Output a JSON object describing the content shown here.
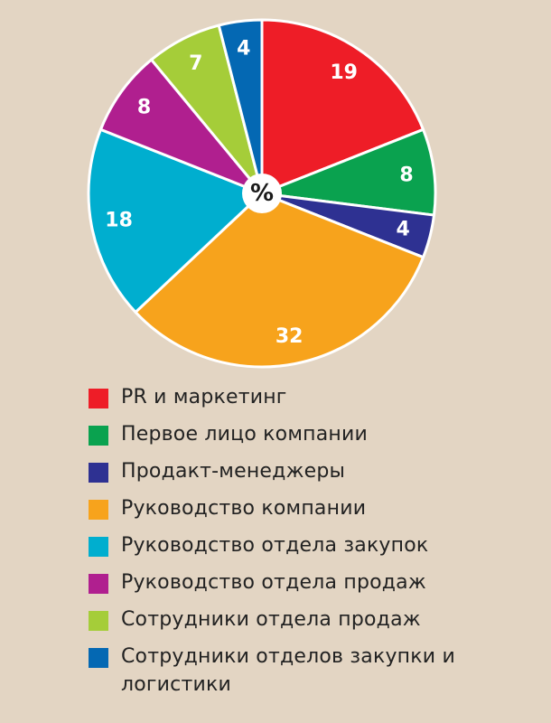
{
  "chart_data": {
    "type": "pie",
    "center_label": "%",
    "start": "12 o'clock, clockwise",
    "legend_placement": "bottom",
    "slices": [
      {
        "label": "PR и маркетинг",
        "value": 19,
        "color": "#ee1d27"
      },
      {
        "label": "Первое лицо компании",
        "value": 8,
        "color": "#0aa24f"
      },
      {
        "label": "Продакт-менеджеры",
        "value": 4,
        "color": "#2e3192"
      },
      {
        "label": "Руководство компании",
        "value": 32,
        "color": "#f7a31c"
      },
      {
        "label": "Руководство отдела закупок",
        "value": 18,
        "color": "#00aecf"
      },
      {
        "label": "Руководство отдела продаж",
        "value": 8,
        "color": "#b01f8f"
      },
      {
        "label": "Сотрудники отдела продаж",
        "value": 7,
        "color": "#a5cd39"
      },
      {
        "label": "Сотрудники отделов закупки и логистики",
        "value": 4,
        "color": "#0468b3"
      }
    ]
  }
}
